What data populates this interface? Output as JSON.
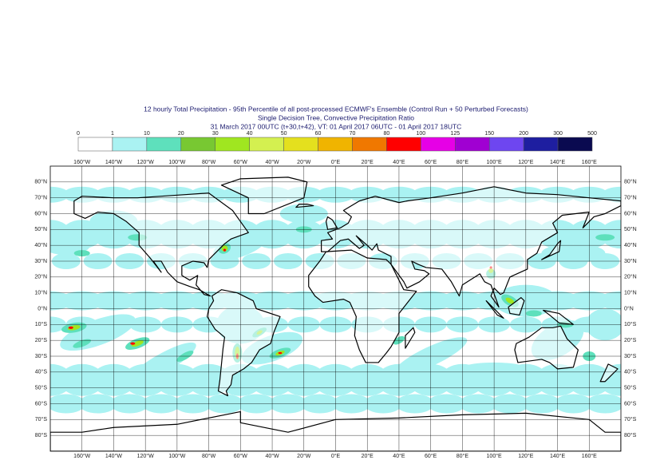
{
  "header": {
    "title_lines": [
      "12 hourly Total Precipitation - 95th Percentile of all post-processed ECMWF's Ensemble (Control Run + 50 Perturbed Forecasts)",
      "Single Decision Tree, Convective Precipitation Ratio",
      "31 March 2017 00UTC (t+30,t+42), VT: 01 April 2017 06UTC - 01 April 2017 18UTC"
    ]
  },
  "legend": {
    "thresholds": [
      0,
      1,
      10,
      20,
      30,
      40,
      50,
      60,
      70,
      80,
      100,
      125,
      150,
      200,
      300,
      500
    ],
    "colors": [
      "#ffffff",
      "#aaf2f2",
      "#5ee0bc",
      "#78c832",
      "#a0e620",
      "#d4f050",
      "#e4e01e",
      "#f0b400",
      "#f07800",
      "#ff0000",
      "#e600e6",
      "#a000d2",
      "#6e46f0",
      "#1e1ea0",
      "#0a0a50"
    ]
  },
  "map": {
    "lonticks": [
      {
        "value": -160,
        "label": "160°W"
      },
      {
        "value": -140,
        "label": "140°W"
      },
      {
        "value": -120,
        "label": "120°W"
      },
      {
        "value": -100,
        "label": "100°W"
      },
      {
        "value": -80,
        "label": "80°W"
      },
      {
        "value": -60,
        "label": "60°W"
      },
      {
        "value": -40,
        "label": "40°W"
      },
      {
        "value": -20,
        "label": "20°W"
      },
      {
        "value": 0,
        "label": "0°E"
      },
      {
        "value": 20,
        "label": "20°E"
      },
      {
        "value": 40,
        "label": "40°E"
      },
      {
        "value": 60,
        "label": "60°E"
      },
      {
        "value": 80,
        "label": "80°E"
      },
      {
        "value": 100,
        "label": "100°E"
      },
      {
        "value": 120,
        "label": "120°E"
      },
      {
        "value": 140,
        "label": "140°E"
      },
      {
        "value": 160,
        "label": "160°E"
      }
    ],
    "latticks": [
      {
        "value": 80,
        "label": "80°N"
      },
      {
        "value": 70,
        "label": "70°N"
      },
      {
        "value": 60,
        "label": "60°N"
      },
      {
        "value": 50,
        "label": "50°N"
      },
      {
        "value": 40,
        "label": "40°N"
      },
      {
        "value": 30,
        "label": "30°N"
      },
      {
        "value": 20,
        "label": "20°N"
      },
      {
        "value": 10,
        "label": "10°N"
      },
      {
        "value": 0,
        "label": "0°N"
      },
      {
        "value": -10,
        "label": "10°S"
      },
      {
        "value": -20,
        "label": "20°S"
      },
      {
        "value": -30,
        "label": "30°S"
      },
      {
        "value": -40,
        "label": "40°S"
      },
      {
        "value": -50,
        "label": "50°S"
      },
      {
        "value": -60,
        "label": "60°S"
      },
      {
        "value": -70,
        "label": "70°S"
      },
      {
        "value": -80,
        "label": "80°S"
      }
    ],
    "lonlim": [
      -180,
      180
    ],
    "latlim": [
      -90,
      90
    ]
  }
}
